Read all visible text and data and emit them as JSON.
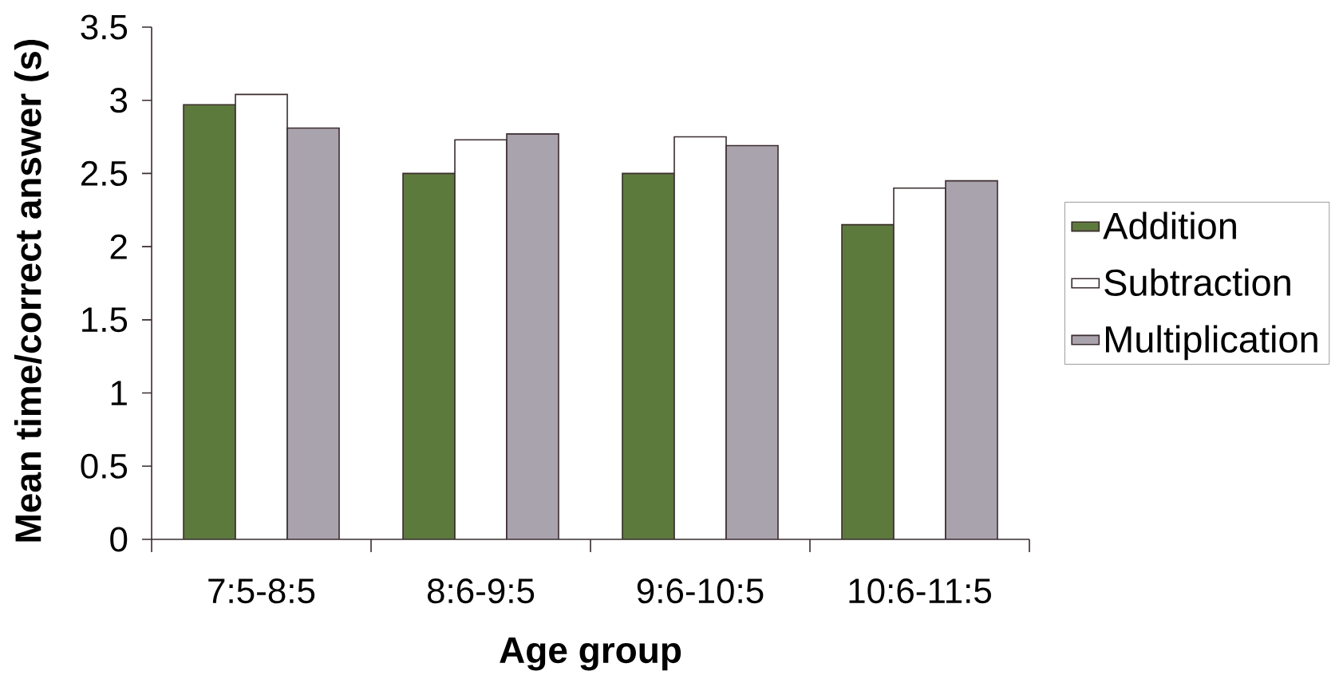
{
  "chart_data": {
    "type": "bar",
    "xlabel": "Age group",
    "ylabel": "Mean time/correct answer (s)",
    "categories": [
      "7:5-8:5",
      "8:6-9:5",
      "9:6-10:5",
      "10:6-11:5"
    ],
    "series": [
      {
        "name": "Addition",
        "color": "#5b7a3c",
        "values": [
          2.97,
          2.5,
          2.5,
          2.15
        ]
      },
      {
        "name": "Subtraction",
        "color": "#ffffff",
        "values": [
          3.04,
          2.73,
          2.75,
          2.4
        ]
      },
      {
        "name": "Multiplication",
        "color": "#a8a3ad",
        "values": [
          2.81,
          2.77,
          2.69,
          2.45
        ]
      }
    ],
    "ylim": [
      0,
      3.5
    ],
    "yticks": [
      0,
      0.5,
      1,
      1.5,
      2,
      2.5,
      3,
      3.5
    ],
    "legend": "right"
  }
}
